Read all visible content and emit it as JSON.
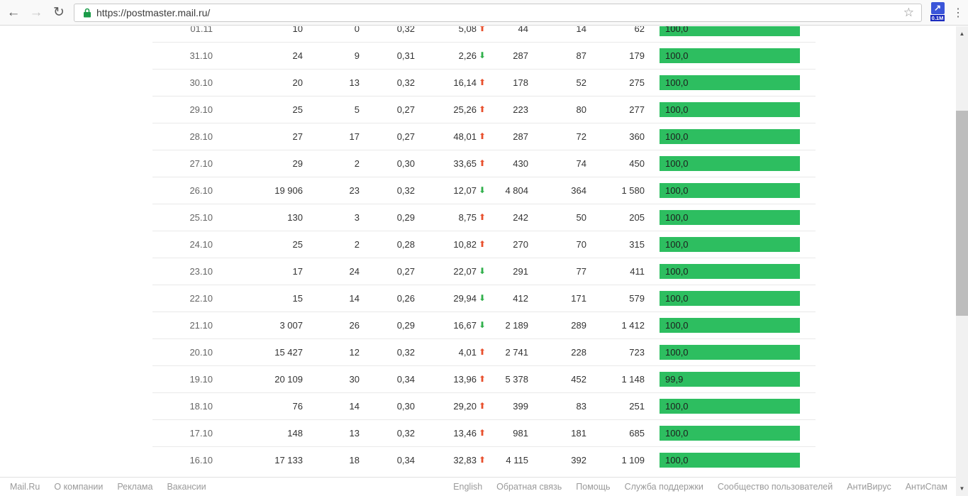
{
  "browser": {
    "url": "https://postmaster.mail.ru/",
    "extension_badge": "0.1M"
  },
  "icons": {
    "back": "←",
    "forward": "→",
    "reload": "↻",
    "star": "☆",
    "menu": "⋮",
    "ext_arrow": "↗",
    "trend_up": "⬆",
    "trend_down": "⬇",
    "scroll_up": "▲",
    "scroll_down": "▼"
  },
  "colors": {
    "bar_green": "#2dbe60",
    "trend_up_red": "#e8502d",
    "trend_down_green": "#2faf4a"
  },
  "table": {
    "rows": [
      {
        "date": "01.11",
        "c1": "10",
        "c2": "0",
        "c3": "0,32",
        "c4": "5,08",
        "trend": "up",
        "c5": "44",
        "c6": "14",
        "c7": "62",
        "bar": "100,0",
        "bar_pct": 100
      },
      {
        "date": "31.10",
        "c1": "24",
        "c2": "9",
        "c3": "0,31",
        "c4": "2,26",
        "trend": "down",
        "c5": "287",
        "c6": "87",
        "c7": "179",
        "bar": "100,0",
        "bar_pct": 100
      },
      {
        "date": "30.10",
        "c1": "20",
        "c2": "13",
        "c3": "0,32",
        "c4": "16,14",
        "trend": "up",
        "c5": "178",
        "c6": "52",
        "c7": "275",
        "bar": "100,0",
        "bar_pct": 100
      },
      {
        "date": "29.10",
        "c1": "25",
        "c2": "5",
        "c3": "0,27",
        "c4": "25,26",
        "trend": "up",
        "c5": "223",
        "c6": "80",
        "c7": "277",
        "bar": "100,0",
        "bar_pct": 100
      },
      {
        "date": "28.10",
        "c1": "27",
        "c2": "17",
        "c3": "0,27",
        "c4": "48,01",
        "trend": "up",
        "c5": "287",
        "c6": "72",
        "c7": "360",
        "bar": "100,0",
        "bar_pct": 100
      },
      {
        "date": "27.10",
        "c1": "29",
        "c2": "2",
        "c3": "0,30",
        "c4": "33,65",
        "trend": "up",
        "c5": "430",
        "c6": "74",
        "c7": "450",
        "bar": "100,0",
        "bar_pct": 100
      },
      {
        "date": "26.10",
        "c1": "19 906",
        "c2": "23",
        "c3": "0,32",
        "c4": "12,07",
        "trend": "down",
        "c5": "4 804",
        "c6": "364",
        "c7": "1 580",
        "bar": "100,0",
        "bar_pct": 100
      },
      {
        "date": "25.10",
        "c1": "130",
        "c2": "3",
        "c3": "0,29",
        "c4": "8,75",
        "trend": "up",
        "c5": "242",
        "c6": "50",
        "c7": "205",
        "bar": "100,0",
        "bar_pct": 100
      },
      {
        "date": "24.10",
        "c1": "25",
        "c2": "2",
        "c3": "0,28",
        "c4": "10,82",
        "trend": "up",
        "c5": "270",
        "c6": "70",
        "c7": "315",
        "bar": "100,0",
        "bar_pct": 100
      },
      {
        "date": "23.10",
        "c1": "17",
        "c2": "24",
        "c3": "0,27",
        "c4": "22,07",
        "trend": "down",
        "c5": "291",
        "c6": "77",
        "c7": "411",
        "bar": "100,0",
        "bar_pct": 100
      },
      {
        "date": "22.10",
        "c1": "15",
        "c2": "14",
        "c3": "0,26",
        "c4": "29,94",
        "trend": "down",
        "c5": "412",
        "c6": "171",
        "c7": "579",
        "bar": "100,0",
        "bar_pct": 100
      },
      {
        "date": "21.10",
        "c1": "3 007",
        "c2": "26",
        "c3": "0,29",
        "c4": "16,67",
        "trend": "down",
        "c5": "2 189",
        "c6": "289",
        "c7": "1 412",
        "bar": "100,0",
        "bar_pct": 100
      },
      {
        "date": "20.10",
        "c1": "15 427",
        "c2": "12",
        "c3": "0,32",
        "c4": "4,01",
        "trend": "up",
        "c5": "2 741",
        "c6": "228",
        "c7": "723",
        "bar": "100,0",
        "bar_pct": 100
      },
      {
        "date": "19.10",
        "c1": "20 109",
        "c2": "30",
        "c3": "0,34",
        "c4": "13,96",
        "trend": "up",
        "c5": "5 378",
        "c6": "452",
        "c7": "1 148",
        "bar": "99,9",
        "bar_pct": 99.9
      },
      {
        "date": "18.10",
        "c1": "76",
        "c2": "14",
        "c3": "0,30",
        "c4": "29,20",
        "trend": "up",
        "c5": "399",
        "c6": "83",
        "c7": "251",
        "bar": "100,0",
        "bar_pct": 100
      },
      {
        "date": "17.10",
        "c1": "148",
        "c2": "13",
        "c3": "0,32",
        "c4": "13,46",
        "trend": "up",
        "c5": "981",
        "c6": "181",
        "c7": "685",
        "bar": "100,0",
        "bar_pct": 100
      },
      {
        "date": "16.10",
        "c1": "17 133",
        "c2": "18",
        "c3": "0,34",
        "c4": "32,83",
        "trend": "up",
        "c5": "4 115",
        "c6": "392",
        "c7": "1 109",
        "bar": "100,0",
        "bar_pct": 100
      }
    ]
  },
  "footer": {
    "left": [
      "Mail.Ru",
      "О компании",
      "Реклама",
      "Вакансии"
    ],
    "right": [
      "English",
      "Обратная связь",
      "Помощь",
      "Служба поддержки",
      "Сообщество пользователей",
      "АнтиВирус",
      "АнтиСпам"
    ]
  }
}
